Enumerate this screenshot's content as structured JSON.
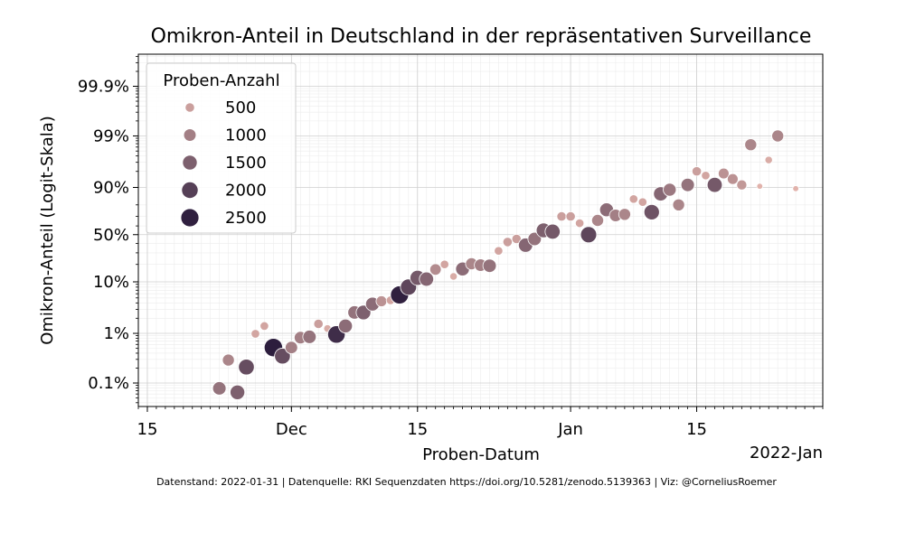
{
  "chart_data": {
    "type": "scatter",
    "title": "Omikron-Anteil in Deutschland in der repräsentativen Surveillance",
    "xlabel": "Proben-Datum",
    "ylabel": "Omikron-Anteil (Logit-Skala)",
    "x_offset_label": "2022-Jan",
    "xlim": [
      "2021-11-14",
      "2022-01-29"
    ],
    "ylim_logit": [
      -8.0,
      8.4
    ],
    "y_scale": "logit",
    "x_ticks": [
      {
        "date": "2021-11-15",
        "label": "15"
      },
      {
        "date": "2021-12-01",
        "label": "Dec"
      },
      {
        "date": "2021-12-15",
        "label": "15"
      },
      {
        "date": "2022-01-01",
        "label": "Jan"
      },
      {
        "date": "2022-01-15",
        "label": "15"
      }
    ],
    "y_ticks": [
      {
        "value": 0.001,
        "label": "0.1%"
      },
      {
        "value": 0.01,
        "label": "1%"
      },
      {
        "value": 0.1,
        "label": "10%"
      },
      {
        "value": 0.5,
        "label": "50%"
      },
      {
        "value": 0.9,
        "label": "90%"
      },
      {
        "value": 0.99,
        "label": "99%"
      },
      {
        "value": 0.999,
        "label": "99.9%"
      }
    ],
    "grid": true,
    "legend": {
      "title": "Proben-Anzahl",
      "position": "top-left",
      "entries": [
        {
          "label": "500",
          "size": 500
        },
        {
          "label": "1000",
          "size": 1000
        },
        {
          "label": "1500",
          "size": 1500
        },
        {
          "label": "2000",
          "size": 2000
        },
        {
          "label": "2500",
          "size": 2500
        }
      ]
    },
    "points": [
      {
        "date": "2021-11-23",
        "share": 0.00078,
        "n": 1200
      },
      {
        "date": "2021-11-24",
        "share": 0.0029,
        "n": 900
      },
      {
        "date": "2021-11-25",
        "share": 0.00065,
        "n": 1500
      },
      {
        "date": "2021-11-26",
        "share": 0.0021,
        "n": 1800
      },
      {
        "date": "2021-11-27",
        "share": 0.0098,
        "n": 400
      },
      {
        "date": "2021-11-28",
        "share": 0.014,
        "n": 400
      },
      {
        "date": "2021-11-29",
        "share": 0.0052,
        "n": 2600
      },
      {
        "date": "2021-11-30",
        "share": 0.0035,
        "n": 1800
      },
      {
        "date": "2021-12-01",
        "share": 0.0052,
        "n": 1000
      },
      {
        "date": "2021-12-02",
        "share": 0.0082,
        "n": 1000
      },
      {
        "date": "2021-12-03",
        "share": 0.0085,
        "n": 1200
      },
      {
        "date": "2021-12-04",
        "share": 0.0155,
        "n": 500
      },
      {
        "date": "2021-12-05",
        "share": 0.0125,
        "n": 300
      },
      {
        "date": "2021-12-06",
        "share": 0.0095,
        "n": 2300
      },
      {
        "date": "2021-12-07",
        "share": 0.014,
        "n": 1300
      },
      {
        "date": "2021-12-08",
        "share": 0.026,
        "n": 1200
      },
      {
        "date": "2021-12-09",
        "share": 0.026,
        "n": 1500
      },
      {
        "date": "2021-12-10",
        "share": 0.038,
        "n": 1300
      },
      {
        "date": "2021-12-11",
        "share": 0.043,
        "n": 700
      },
      {
        "date": "2021-12-12",
        "share": 0.045,
        "n": 400
      },
      {
        "date": "2021-12-13",
        "share": 0.057,
        "n": 2500
      },
      {
        "date": "2021-12-14",
        "share": 0.08,
        "n": 1900
      },
      {
        "date": "2021-12-15",
        "share": 0.118,
        "n": 1600
      },
      {
        "date": "2021-12-16",
        "share": 0.112,
        "n": 1400
      },
      {
        "date": "2021-12-17",
        "share": 0.165,
        "n": 800
      },
      {
        "date": "2021-12-18",
        "share": 0.2,
        "n": 400
      },
      {
        "date": "2021-12-19",
        "share": 0.125,
        "n": 300
      },
      {
        "date": "2021-12-20",
        "share": 0.168,
        "n": 1300
      },
      {
        "date": "2021-12-21",
        "share": 0.205,
        "n": 900
      },
      {
        "date": "2021-12-22",
        "share": 0.195,
        "n": 1000
      },
      {
        "date": "2021-12-23",
        "share": 0.19,
        "n": 1200
      },
      {
        "date": "2021-12-24",
        "share": 0.32,
        "n": 400
      },
      {
        "date": "2021-12-25",
        "share": 0.415,
        "n": 500
      },
      {
        "date": "2021-12-26",
        "share": 0.45,
        "n": 500
      },
      {
        "date": "2021-12-27",
        "share": 0.38,
        "n": 1400
      },
      {
        "date": "2021-12-28",
        "share": 0.45,
        "n": 1200
      },
      {
        "date": "2021-12-29",
        "share": 0.55,
        "n": 1500
      },
      {
        "date": "2021-12-30",
        "share": 0.535,
        "n": 1600
      },
      {
        "date": "2021-12-31",
        "share": 0.7,
        "n": 500
      },
      {
        "date": "2022-01-01",
        "share": 0.7,
        "n": 500
      },
      {
        "date": "2022-01-02",
        "share": 0.63,
        "n": 400
      },
      {
        "date": "2022-01-03",
        "share": 0.5,
        "n": 1900
      },
      {
        "date": "2022-01-04",
        "share": 0.66,
        "n": 900
      },
      {
        "date": "2022-01-05",
        "share": 0.76,
        "n": 1300
      },
      {
        "date": "2022-01-06",
        "share": 0.71,
        "n": 1000
      },
      {
        "date": "2022-01-07",
        "share": 0.72,
        "n": 900
      },
      {
        "date": "2022-01-08",
        "share": 0.84,
        "n": 400
      },
      {
        "date": "2022-01-09",
        "share": 0.82,
        "n": 400
      },
      {
        "date": "2022-01-10",
        "share": 0.74,
        "n": 1700
      },
      {
        "date": "2022-01-11",
        "share": 0.87,
        "n": 1400
      },
      {
        "date": "2022-01-12",
        "share": 0.89,
        "n": 1100
      },
      {
        "date": "2022-01-13",
        "share": 0.8,
        "n": 900
      },
      {
        "date": "2022-01-14",
        "share": 0.91,
        "n": 1200
      },
      {
        "date": "2022-01-15",
        "share": 0.95,
        "n": 500
      },
      {
        "date": "2022-01-16",
        "share": 0.94,
        "n": 400
      },
      {
        "date": "2022-01-17",
        "share": 0.91,
        "n": 1600
      },
      {
        "date": "2022-01-18",
        "share": 0.945,
        "n": 700
      },
      {
        "date": "2022-01-19",
        "share": 0.93,
        "n": 700
      },
      {
        "date": "2022-01-20",
        "share": 0.91,
        "n": 600
      },
      {
        "date": "2022-01-21",
        "share": 0.985,
        "n": 900
      },
      {
        "date": "2022-01-22",
        "share": 0.905,
        "n": 200
      },
      {
        "date": "2022-01-23",
        "share": 0.97,
        "n": 300
      },
      {
        "date": "2022-01-24",
        "share": 0.99,
        "n": 900
      },
      {
        "date": "2022-01-26",
        "share": 0.895,
        "n": 200
      }
    ]
  },
  "footer": "Datenstand: 2022-01-31 | Datenquelle: RKI Sequenzdaten https://doi.org/10.5281/zenodo.5139363 | Viz: @CorneliusRoemer"
}
